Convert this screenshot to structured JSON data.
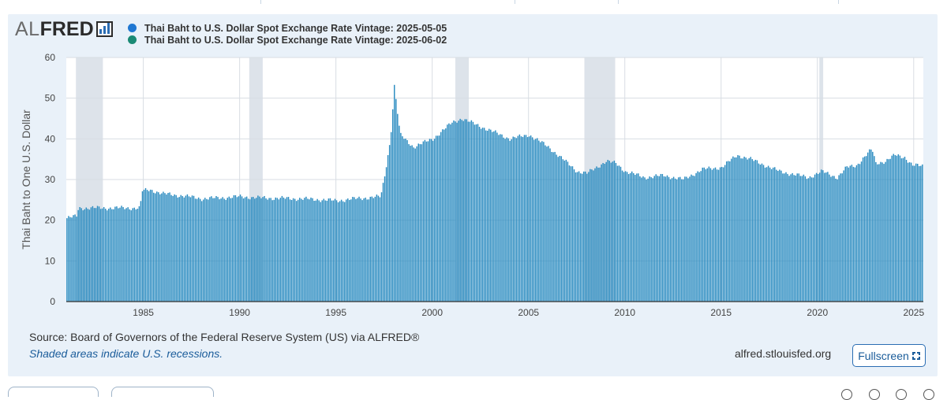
{
  "logo": {
    "part1": "AL",
    "part2": "FRED"
  },
  "legend": [
    {
      "label": "Thai Baht to U.S. Dollar Spot Exchange Rate Vintage: 2025-05-05",
      "color": "#1f77d2"
    },
    {
      "label": "Thai Baht to U.S. Dollar Spot Exchange Rate Vintage: 2025-06-02",
      "color": "#1a8a75"
    }
  ],
  "footer": {
    "source": "Source: Board of Governors of the Federal Reserve System (US) via ALFRED®",
    "recession_note": "Shaded areas indicate U.S. recessions.",
    "site": "alfred.stlouisfed.org",
    "fullscreen_label": "Fullscreen"
  },
  "chart_data": {
    "type": "bar",
    "ylabel": "Thai Baht to One U.S. Dollar",
    "ylim": [
      0,
      60
    ],
    "yticks": [
      0,
      10,
      20,
      30,
      40,
      50,
      60
    ],
    "xlim": [
      1981.0,
      2025.5
    ],
    "xticks": [
      1985,
      1990,
      1995,
      2000,
      2005,
      2010,
      2015,
      2020,
      2025
    ],
    "grid": true,
    "bar_color": "#2a8bc0",
    "recession_color": "#dde3ea",
    "recessions": [
      [
        1981.5,
        1982.9
      ],
      [
        1990.5,
        1991.2
      ],
      [
        2001.2,
        2001.9
      ],
      [
        2007.9,
        2009.5
      ],
      [
        2020.1,
        2020.3
      ]
    ],
    "series_points": [
      [
        1981.0,
        20.5
      ],
      [
        1981.5,
        21.0
      ],
      [
        1981.6,
        23.0
      ],
      [
        1984.8,
        23.0
      ],
      [
        1984.9,
        27.2
      ],
      [
        1985.3,
        27.5
      ],
      [
        1986.0,
        26.5
      ],
      [
        1987.0,
        26.0
      ],
      [
        1988.0,
        25.3
      ],
      [
        1989.0,
        25.5
      ],
      [
        1990.0,
        25.8
      ],
      [
        1991.0,
        25.5
      ],
      [
        1992.0,
        25.4
      ],
      [
        1993.0,
        25.3
      ],
      [
        1994.0,
        25.1
      ],
      [
        1995.0,
        24.8
      ],
      [
        1996.0,
        25.3
      ],
      [
        1997.3,
        25.8
      ],
      [
        1997.5,
        31.0
      ],
      [
        1997.8,
        40.0
      ],
      [
        1998.0,
        53.0
      ],
      [
        1998.3,
        41.0
      ],
      [
        1999.0,
        38.0
      ],
      [
        2000.0,
        40.0
      ],
      [
        2001.0,
        44.0
      ],
      [
        2001.5,
        45.0
      ],
      [
        2002.0,
        44.0
      ],
      [
        2003.0,
        42.0
      ],
      [
        2004.0,
        40.0
      ],
      [
        2005.0,
        41.0
      ],
      [
        2006.0,
        38.0
      ],
      [
        2007.0,
        34.0
      ],
      [
        2007.5,
        32.0
      ],
      [
        2008.0,
        31.5
      ],
      [
        2009.0,
        34.5
      ],
      [
        2009.5,
        34.0
      ],
      [
        2010.0,
        32.0
      ],
      [
        2011.0,
        30.5
      ],
      [
        2012.0,
        31.0
      ],
      [
        2013.0,
        30.0
      ],
      [
        2014.0,
        32.5
      ],
      [
        2015.0,
        33.0
      ],
      [
        2015.8,
        36.0
      ],
      [
        2016.5,
        35.0
      ],
      [
        2017.5,
        33.0
      ],
      [
        2018.0,
        32.0
      ],
      [
        2019.0,
        31.0
      ],
      [
        2019.5,
        30.5
      ],
      [
        2020.2,
        32.0
      ],
      [
        2021.0,
        30.5
      ],
      [
        2021.5,
        33.0
      ],
      [
        2022.0,
        33.5
      ],
      [
        2022.8,
        37.5
      ],
      [
        2023.0,
        34.0
      ],
      [
        2023.5,
        34.5
      ],
      [
        2024.0,
        36.0
      ],
      [
        2024.5,
        35.5
      ],
      [
        2024.9,
        33.5
      ],
      [
        2025.5,
        33.3
      ]
    ]
  }
}
